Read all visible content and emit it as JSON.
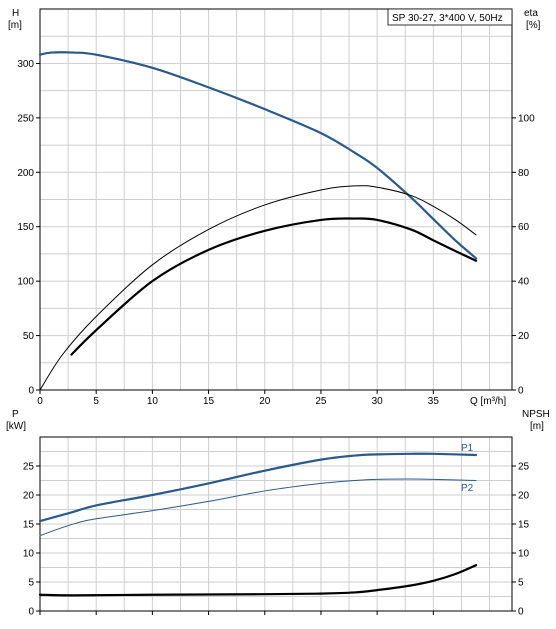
{
  "chart_data": [
    {
      "type": "line",
      "title": "SP 30-27, 3*400 V, 50Hz",
      "xlabel": "Q [m³/h]",
      "ylabel_left_symbol": "H",
      "ylabel_left_unit": "[m]",
      "ylabel_right_symbol": "eta",
      "ylabel_right_unit": "[%]",
      "xlim": [
        0,
        42
      ],
      "ylim_left": [
        0,
        350
      ],
      "ylim_right": [
        0,
        140
      ],
      "x_ticks": [
        "0",
        "5",
        "10",
        "15",
        "20",
        "25",
        "30",
        "35"
      ],
      "y_ticks_left": [
        "0",
        "50",
        "100",
        "150",
        "200",
        "250",
        "300"
      ],
      "y_ticks_right": [
        "0",
        "20",
        "40",
        "60",
        "80",
        "100"
      ],
      "series": [
        {
          "axis": "left",
          "color": "#2a5a8c",
          "width": 2.2,
          "x": [
            0,
            1,
            3,
            5,
            10,
            15,
            20,
            25,
            28,
            30,
            33,
            35,
            37,
            38.8
          ],
          "y": [
            308,
            310,
            310,
            308,
            296,
            278,
            258,
            236,
            218,
            204,
            177,
            157,
            137,
            121
          ]
        },
        {
          "axis": "right",
          "color": "#000000",
          "width": 1.0,
          "x": [
            0,
            2,
            5,
            10,
            15,
            20,
            25,
            28,
            30,
            33,
            35,
            37,
            38.8
          ],
          "y": [
            0,
            13,
            27,
            46,
            59,
            68,
            73.5,
            75,
            74.5,
            71.5,
            67.5,
            62.5,
            57
          ]
        },
        {
          "axis": "right",
          "color": "#000000",
          "width": 2.2,
          "x": [
            2.8,
            5,
            10,
            15,
            20,
            25,
            28,
            30,
            33,
            35,
            37,
            38.8
          ],
          "y": [
            13,
            22,
            40,
            51.5,
            58.5,
            62.5,
            63,
            62.5,
            59,
            55,
            51,
            47.5
          ]
        }
      ]
    },
    {
      "type": "line",
      "ylabel_left_symbol": "P",
      "ylabel_left_unit": "[kW]",
      "ylabel_right_symbol": "NPSH",
      "ylabel_right_unit": "[m]",
      "xlim": [
        0,
        42
      ],
      "ylim_left": [
        0,
        30
      ],
      "ylim_right": [
        0,
        30
      ],
      "y_ticks_left": [
        "0",
        "5",
        "10",
        "15",
        "20",
        "25"
      ],
      "y_ticks_right": [
        "0",
        "5",
        "10",
        "15",
        "20",
        "25"
      ],
      "series": [
        {
          "name": "P1",
          "axis": "left",
          "color": "#2a5a8c",
          "width": 2.2,
          "x": [
            0,
            2.8,
            5,
            10,
            15,
            20,
            25,
            28,
            30,
            33,
            35,
            38.8
          ],
          "y": [
            15.5,
            17,
            18.2,
            20,
            22,
            24.2,
            26.1,
            26.8,
            27,
            27.1,
            27.1,
            26.9
          ]
        },
        {
          "name": "P2",
          "axis": "left",
          "color": "#2a5a8c",
          "width": 1.0,
          "x": [
            0,
            2.8,
            5,
            10,
            15,
            20,
            25,
            28,
            30,
            33,
            35,
            38.8
          ],
          "y": [
            13,
            14.9,
            15.9,
            17.3,
            18.9,
            20.7,
            22,
            22.5,
            22.7,
            22.75,
            22.7,
            22.5
          ]
        },
        {
          "axis": "right",
          "color": "#000000",
          "width": 2.2,
          "x": [
            0,
            2.8,
            10,
            20,
            25,
            28,
            30,
            33,
            35,
            37,
            38.8
          ],
          "y": [
            2.8,
            2.7,
            2.8,
            2.9,
            3.0,
            3.2,
            3.6,
            4.4,
            5.2,
            6.4,
            7.9
          ]
        }
      ]
    }
  ]
}
